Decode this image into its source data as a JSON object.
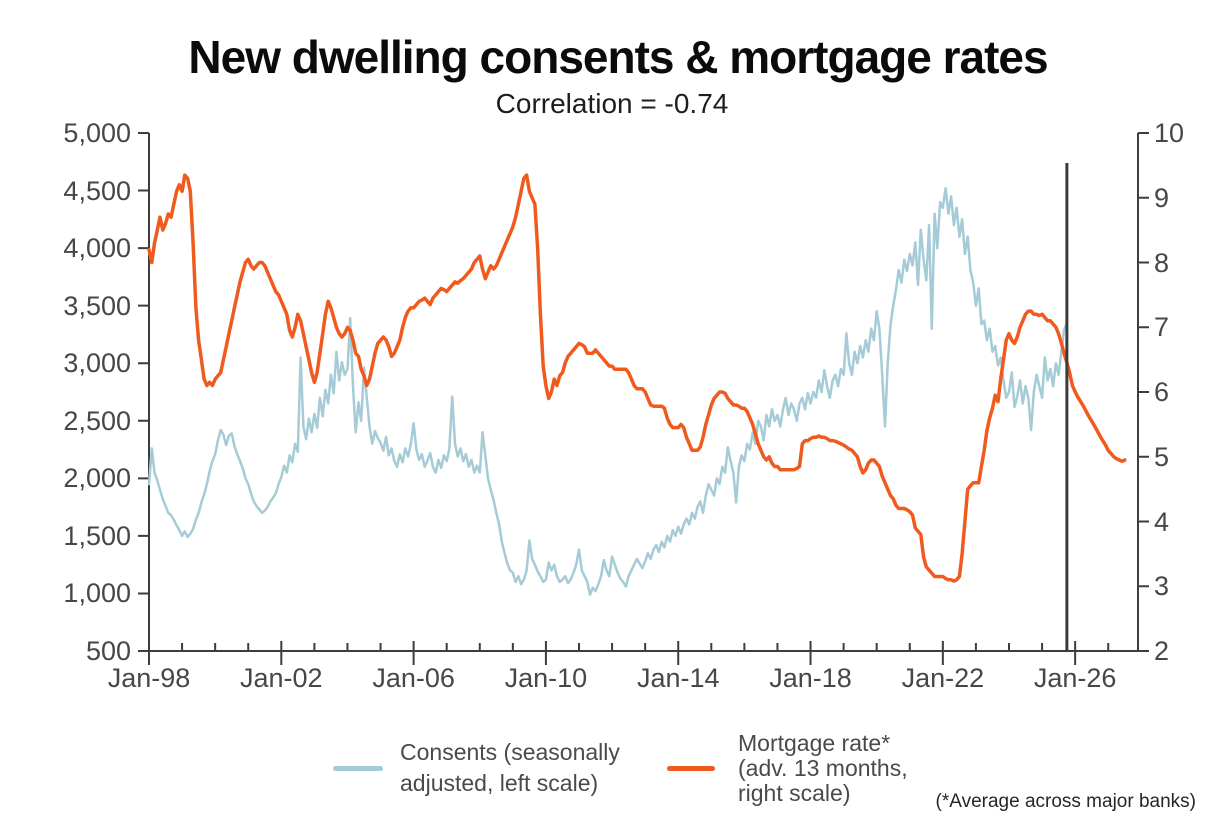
{
  "title": "New dwelling consents & mortgage rates",
  "subtitle": "Correlation = -0.74",
  "footnote": "(*Average across major banks)",
  "legend": {
    "consents_lines": [
      "Consents (seasonally",
      "adjusted, left scale)"
    ],
    "mortgage_lines": [
      "Mortgage rate*",
      "(adv. 13 months,",
      "right scale)"
    ]
  },
  "colors": {
    "consents": "#a5cbd7",
    "mortgage": "#f05a1e",
    "axis": "#3d3d3d",
    "tick_text": "#474747",
    "marker": "#3b3b3b"
  },
  "chart_data": {
    "type": "line",
    "title": "New dwelling consents & mortgage rates",
    "subtitle": "Correlation = -0.74",
    "grid": false,
    "legend_position": "bottom",
    "x_axis": {
      "domain": [
        1998.0,
        2027.9
      ],
      "tick_dates": [
        1998,
        2002,
        2006,
        2010,
        2014,
        2018,
        2022,
        2026
      ],
      "tick_labels": [
        "Jan-98",
        "Jan-02",
        "Jan-06",
        "Jan-10",
        "Jan-14",
        "Jan-18",
        "Jan-22",
        "Jan-26"
      ],
      "minor_tick_interval_years": 1
    },
    "left_axis": {
      "range": [
        500,
        5000
      ],
      "ticks": [
        500,
        1000,
        1500,
        2000,
        2500,
        3000,
        3500,
        4000,
        4500,
        5000
      ],
      "series": "Consents (monthly, seasonally adjusted)"
    },
    "right_axis": {
      "range": [
        2,
        10
      ],
      "ticks": [
        2,
        3,
        4,
        5,
        6,
        7,
        8,
        9,
        10
      ],
      "series": "Mortgage rate % (advanced 13 months)"
    },
    "marker_line_date": 2025.75,
    "series": [
      {
        "name": "Consents (seasonally adjusted, left scale)",
        "axis": "left",
        "color": "#a5cbd7",
        "stroke_width": 2.5,
        "start_date": 1998.0,
        "interval_months": 1,
        "values": [
          1950,
          2260,
          2050,
          1980,
          1900,
          1820,
          1760,
          1700,
          1680,
          1640,
          1590,
          1550,
          1500,
          1540,
          1490,
          1520,
          1560,
          1640,
          1700,
          1790,
          1860,
          1950,
          2060,
          2150,
          2210,
          2330,
          2420,
          2380,
          2290,
          2370,
          2390,
          2280,
          2210,
          2150,
          2090,
          2000,
          1950,
          1870,
          1800,
          1760,
          1730,
          1700,
          1720,
          1750,
          1800,
          1830,
          1870,
          1950,
          2010,
          2110,
          2050,
          2200,
          2140,
          2300,
          2230,
          3050,
          2450,
          2340,
          2520,
          2400,
          2560,
          2440,
          2700,
          2540,
          2770,
          2650,
          2900,
          2740,
          3100,
          2850,
          3010,
          2900,
          2950,
          3390,
          2800,
          2400,
          2660,
          2500,
          2960,
          2700,
          2450,
          2300,
          2410,
          2350,
          2310,
          2240,
          2360,
          2200,
          2260,
          2150,
          2100,
          2210,
          2140,
          2260,
          2190,
          2300,
          2480,
          2250,
          2160,
          2210,
          2100,
          2150,
          2220,
          2100,
          2050,
          2160,
          2090,
          2200,
          2150,
          2260,
          2710,
          2300,
          2190,
          2260,
          2150,
          2210,
          2100,
          2160,
          2050,
          2110,
          2050,
          2400,
          2200,
          2000,
          1900,
          1810,
          1700,
          1600,
          1450,
          1350,
          1260,
          1200,
          1180,
          1100,
          1150,
          1080,
          1120,
          1200,
          1460,
          1300,
          1250,
          1190,
          1150,
          1100,
          1120,
          1270,
          1200,
          1250,
          1150,
          1100,
          1120,
          1150,
          1090,
          1120,
          1180,
          1250,
          1380,
          1200,
          1150,
          1100,
          990,
          1050,
          1020,
          1080,
          1150,
          1290,
          1200,
          1150,
          1320,
          1250,
          1180,
          1130,
          1100,
          1060,
          1150,
          1200,
          1250,
          1300,
          1260,
          1220,
          1280,
          1350,
          1300,
          1380,
          1420,
          1360,
          1450,
          1400,
          1500,
          1450,
          1550,
          1500,
          1580,
          1520,
          1600,
          1650,
          1600,
          1700,
          1650,
          1750,
          1800,
          1700,
          1850,
          1950,
          1900,
          1850,
          2000,
          1950,
          2100,
          2050,
          2270,
          2150,
          2050,
          1790,
          2100,
          2200,
          2150,
          2300,
          2250,
          2400,
          2300,
          2500,
          2450,
          2330,
          2550,
          2450,
          2600,
          2500,
          2550,
          2450,
          2600,
          2700,
          2550,
          2650,
          2600,
          2500,
          2650,
          2700,
          2600,
          2740,
          2650,
          2750,
          2700,
          2850,
          2750,
          2940,
          2800,
          2700,
          2850,
          2900,
          2800,
          2950,
          2900,
          3260,
          3000,
          2900,
          3100,
          3000,
          3150,
          3050,
          3200,
          3100,
          3300,
          3200,
          3450,
          3300,
          2900,
          2450,
          3000,
          3330,
          3500,
          3640,
          3810,
          3700,
          3900,
          3800,
          3950,
          3850,
          4050,
          3680,
          4160,
          3900,
          3720,
          4200,
          3300,
          4300,
          4000,
          4400,
          4350,
          4520,
          4300,
          4450,
          4200,
          4350,
          4100,
          4250,
          3950,
          4100,
          3810,
          3700,
          3500,
          3650,
          3340,
          3370,
          3200,
          3300,
          3100,
          3150,
          2980,
          3050,
          2850,
          2700,
          2750,
          2920,
          2620,
          2710,
          2850,
          2650,
          2800,
          2700,
          2420,
          2750,
          2900,
          2800,
          2700,
          3050,
          2850,
          2950,
          2800,
          3000,
          2900,
          3100,
          3290,
          3350
        ]
      },
      {
        "name": "Mortgage rate* (adv. 13 months, right scale)",
        "axis": "right",
        "color": "#f05a1e",
        "stroke_width": 3.5,
        "start_date": 1998.0,
        "interval_months": 1,
        "values": [
          8.2,
          8.0,
          8.3,
          8.5,
          8.7,
          8.5,
          8.6,
          8.75,
          8.7,
          8.9,
          9.1,
          9.2,
          9.1,
          9.35,
          9.3,
          9.1,
          8.3,
          7.3,
          6.8,
          6.5,
          6.2,
          6.1,
          6.15,
          6.1,
          6.2,
          6.25,
          6.3,
          6.5,
          6.7,
          6.9,
          7.1,
          7.3,
          7.5,
          7.7,
          7.85,
          8.0,
          8.05,
          7.95,
          7.9,
          7.95,
          8.0,
          8.0,
          7.95,
          7.85,
          7.75,
          7.65,
          7.55,
          7.5,
          7.4,
          7.3,
          7.2,
          6.95,
          6.85,
          7.0,
          7.2,
          7.1,
          6.9,
          6.7,
          6.5,
          6.3,
          6.15,
          6.3,
          6.6,
          6.9,
          7.2,
          7.4,
          7.3,
          7.15,
          7.0,
          6.9,
          6.85,
          6.9,
          7.0,
          6.95,
          6.8,
          6.6,
          6.55,
          6.35,
          6.25,
          6.1,
          6.2,
          6.4,
          6.6,
          6.75,
          6.8,
          6.85,
          6.8,
          6.7,
          6.55,
          6.6,
          6.7,
          6.8,
          7.0,
          7.15,
          7.25,
          7.3,
          7.3,
          7.35,
          7.4,
          7.42,
          7.45,
          7.4,
          7.35,
          7.45,
          7.5,
          7.55,
          7.6,
          7.58,
          7.55,
          7.6,
          7.65,
          7.7,
          7.68,
          7.72,
          7.75,
          7.8,
          7.85,
          7.9,
          8.0,
          8.05,
          8.1,
          7.9,
          7.75,
          7.85,
          7.95,
          7.9,
          7.95,
          8.05,
          8.15,
          8.25,
          8.35,
          8.45,
          8.55,
          8.7,
          8.9,
          9.1,
          9.3,
          9.35,
          9.1,
          9.0,
          8.9,
          8.2,
          7.2,
          6.4,
          6.1,
          5.9,
          6.0,
          6.2,
          6.1,
          6.25,
          6.3,
          6.45,
          6.55,
          6.6,
          6.65,
          6.7,
          6.75,
          6.73,
          6.7,
          6.6,
          6.6,
          6.6,
          6.65,
          6.6,
          6.55,
          6.5,
          6.45,
          6.4,
          6.4,
          6.35,
          6.35,
          6.35,
          6.35,
          6.35,
          6.3,
          6.2,
          6.1,
          6.05,
          6.05,
          6.05,
          6.0,
          5.9,
          5.8,
          5.78,
          5.78,
          5.78,
          5.78,
          5.75,
          5.6,
          5.5,
          5.45,
          5.45,
          5.45,
          5.5,
          5.45,
          5.3,
          5.2,
          5.1,
          5.1,
          5.1,
          5.15,
          5.3,
          5.5,
          5.65,
          5.8,
          5.9,
          5.95,
          6.0,
          6.0,
          5.98,
          5.9,
          5.85,
          5.8,
          5.8,
          5.78,
          5.75,
          5.75,
          5.7,
          5.6,
          5.5,
          5.35,
          5.2,
          5.1,
          5.0,
          4.95,
          5.0,
          4.9,
          4.85,
          4.85,
          4.8,
          4.8,
          4.8,
          4.8,
          4.8,
          4.8,
          4.82,
          4.85,
          5.2,
          5.25,
          5.25,
          5.28,
          5.3,
          5.3,
          5.32,
          5.3,
          5.3,
          5.28,
          5.25,
          5.25,
          5.24,
          5.22,
          5.2,
          5.18,
          5.15,
          5.12,
          5.1,
          5.05,
          5.0,
          4.85,
          4.75,
          4.8,
          4.9,
          4.95,
          4.95,
          4.9,
          4.85,
          4.7,
          4.6,
          4.5,
          4.4,
          4.35,
          4.25,
          4.2,
          4.2,
          4.2,
          4.18,
          4.15,
          4.1,
          3.9,
          3.85,
          3.8,
          3.45,
          3.3,
          3.25,
          3.2,
          3.15,
          3.15,
          3.15,
          3.15,
          3.12,
          3.1,
          3.1,
          3.08,
          3.1,
          3.15,
          3.5,
          4.0,
          4.5,
          4.55,
          4.6,
          4.6,
          4.6,
          4.85,
          5.1,
          5.4,
          5.6,
          5.75,
          5.95,
          5.85,
          6.2,
          6.5,
          6.8,
          6.9,
          6.8,
          6.75,
          6.85,
          7.0,
          7.1,
          7.2,
          7.25,
          7.25,
          7.2,
          7.2,
          7.18,
          7.2,
          7.15,
          7.1,
          7.1,
          7.05,
          7.0,
          6.9,
          6.75,
          6.6,
          6.45,
          6.3,
          6.1,
          6.0,
          5.92,
          5.85,
          5.78,
          5.7,
          5.62,
          5.55,
          5.48,
          5.4,
          5.32,
          5.25,
          5.18,
          5.1,
          5.05,
          5.0,
          4.97,
          4.95,
          4.93,
          4.95
        ]
      }
    ]
  }
}
